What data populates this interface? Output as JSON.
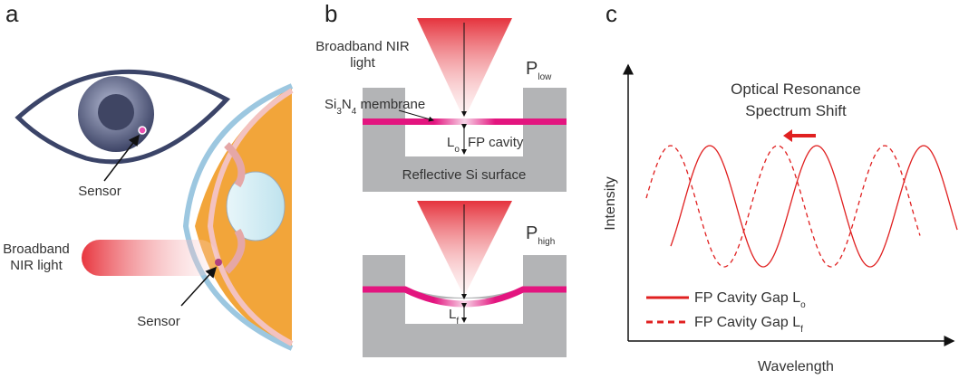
{
  "panels": [
    {
      "label": "a",
      "sensor_top": "Sensor",
      "light": [
        "Broadband",
        "NIR light"
      ],
      "sensor_bottom": "Sensor"
    },
    {
      "label": "b",
      "light": [
        "Broadband NIR",
        "light"
      ],
      "pressure_low": [
        "P",
        "low"
      ],
      "membrane": [
        "Si",
        "3",
        "N",
        "4",
        " membrane"
      ],
      "gap_low": [
        "L",
        "o"
      ],
      "cavity": "FP cavity",
      "surface": "Reflective Si surface",
      "pressure_high": [
        "P",
        "high"
      ],
      "gap_high": [
        "L",
        "f"
      ]
    },
    {
      "label": "c",
      "title": [
        "Optical Resonance",
        "Spectrum Shift"
      ],
      "y_label": "Intensity",
      "x_label": "Wavelength",
      "legend": [
        [
          "FP Cavity Gap L",
          "o"
        ],
        [
          "FP Cavity Gap L",
          "f"
        ]
      ]
    }
  ]
}
